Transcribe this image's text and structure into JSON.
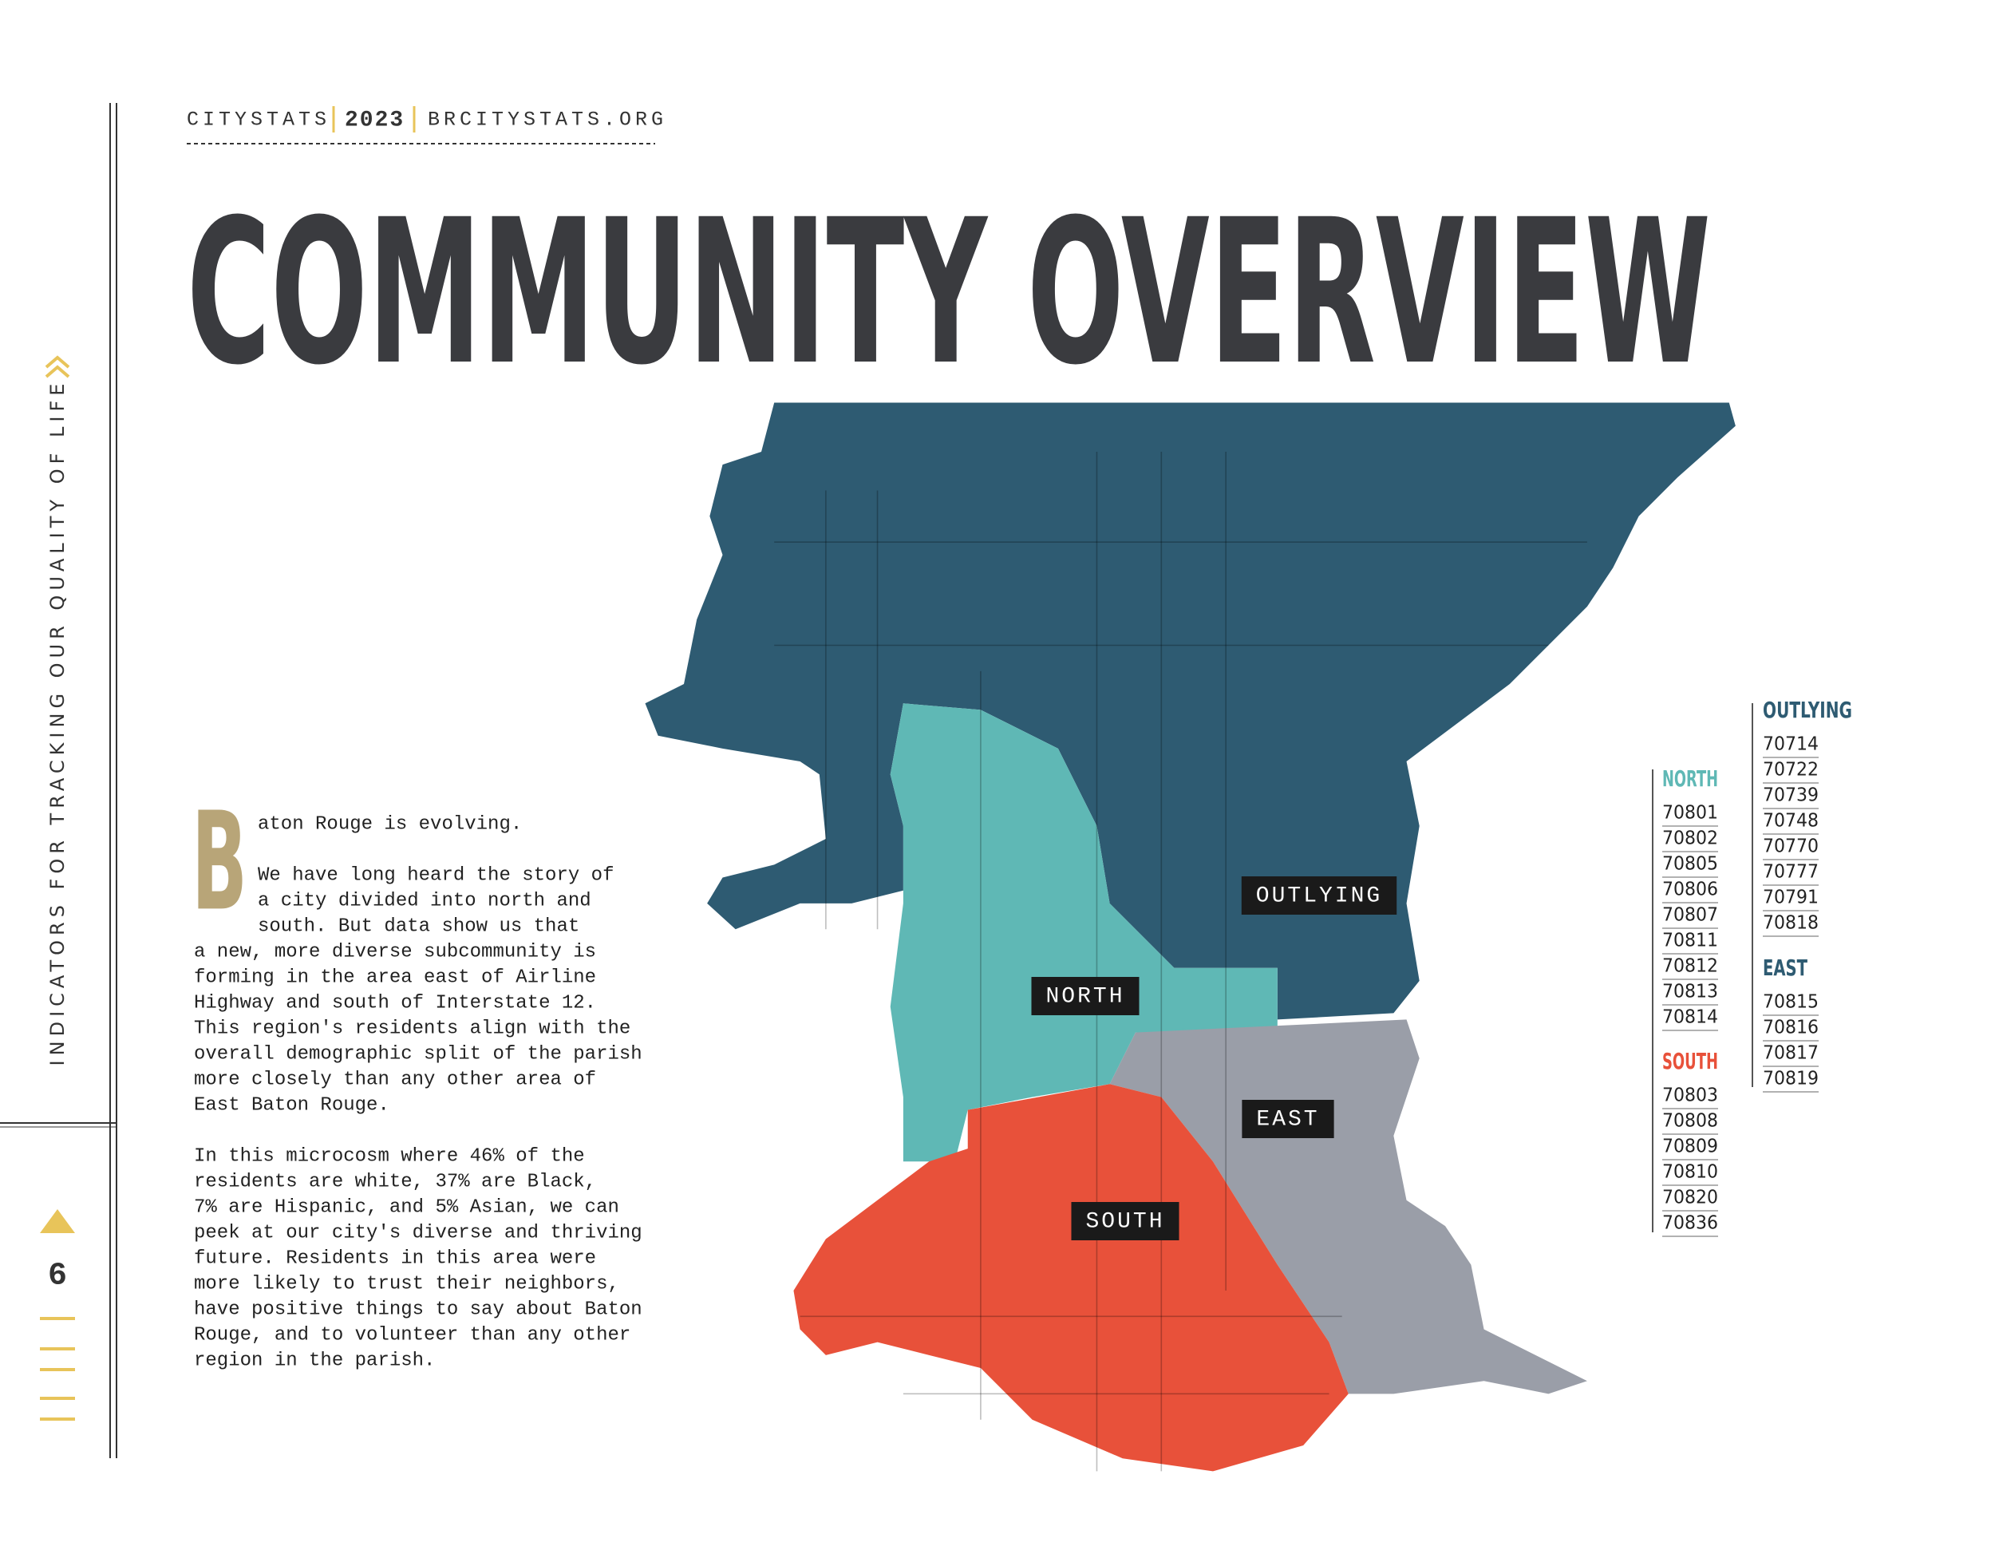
{
  "header": {
    "site_name": "CITYSTATS",
    "year": "2023",
    "url": "BRCITYSTATS.ORG"
  },
  "title": "COMMUNITY OVERVIEW",
  "sidebar": {
    "tagline": "INDICATORS FOR TRACKING OUR QUALITY OF LIFE",
    "page_number": "6"
  },
  "body": {
    "drop_cap": "B",
    "paragraphs": [
      [
        "aton Rouge is evolving."
      ],
      [
        "We have long heard the story of",
        "a city divided into north and",
        "south. But data show us that",
        "a new, more diverse subcommunity is",
        "forming in the area east of Airline",
        "Highway and south of Interstate 12.",
        "This region's residents align with the",
        "overall demographic split of the parish",
        "more closely than any other area of",
        "East Baton Rouge."
      ],
      [
        "In this microcosm where 46% of the",
        "residents are white, 37% are Black,",
        "7% are Hispanic, and 5% Asian, we can",
        "peek at our city's diverse and thriving",
        "future. Residents in this area were",
        "more likely to trust their neighbors,",
        "have positive things to say about Baton",
        "Rouge, and to volunteer than any other",
        "region in the parish."
      ]
    ]
  },
  "map": {
    "labels": [
      "OUTLYING",
      "NORTH",
      "EAST",
      "SOUTH"
    ]
  },
  "zip_codes": [
    {
      "region": "NORTH",
      "codes": [
        "70801",
        "70802",
        "70805",
        "70806",
        "70807",
        "70811",
        "70812",
        "70813",
        "70814"
      ]
    },
    {
      "region": "SOUTH",
      "codes": [
        "70803",
        "70808",
        "70809",
        "70810",
        "70820",
        "70836"
      ]
    },
    {
      "region": "OUTLYING",
      "codes": [
        "70714",
        "70722",
        "70739",
        "70748",
        "70770",
        "70777",
        "70791",
        "70818"
      ]
    },
    {
      "region": "EAST",
      "codes": [
        "70815",
        "70816",
        "70817",
        "70819"
      ]
    }
  ]
}
